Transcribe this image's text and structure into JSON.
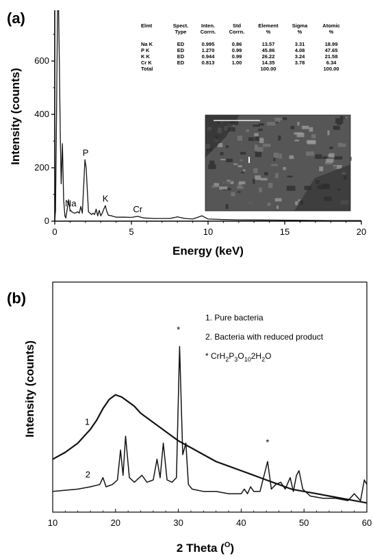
{
  "panels": {
    "a_label": "(a)",
    "b_label": "(b)"
  },
  "chart_data": [
    {
      "type": "line",
      "panel": "(a)",
      "title": "",
      "xlabel": "Energy (keV)",
      "ylabel": "Intensity (counts)",
      "xlim": [
        0,
        20
      ],
      "ylim": [
        0,
        790
      ],
      "x_ticks": [
        "0",
        "5",
        "10",
        "15",
        "20"
      ],
      "y_ticks": [
        "0",
        "200",
        "400",
        "600"
      ],
      "x_tick_values": [
        0,
        5,
        10,
        15,
        20
      ],
      "y_tick_values": [
        0,
        200,
        400,
        600
      ],
      "series": [
        {
          "x": [
            0.0,
            0.05,
            0.12,
            0.18,
            0.25,
            0.3,
            0.36,
            0.42,
            0.5,
            0.58,
            0.66,
            0.72,
            0.8,
            0.9,
            1.0,
            1.04,
            1.1,
            1.2,
            1.3,
            1.4,
            1.5,
            1.6,
            1.7,
            1.8,
            1.9,
            1.97,
            2.05,
            2.13,
            2.2,
            2.3,
            2.4,
            2.5,
            2.6,
            2.7,
            2.8,
            2.9,
            3.0,
            3.1,
            3.2,
            3.3,
            3.4,
            3.5,
            3.7,
            4.0,
            4.5,
            5.0,
            5.4,
            5.8,
            6.5,
            7.5,
            8.0,
            8.5,
            9.0,
            9.6,
            10.0,
            11.0,
            12.0,
            14.0,
            16.0,
            18.0,
            20.0
          ],
          "values": [
            0,
            40,
            420,
            790,
            790,
            600,
            320,
            140,
            290,
            80,
            20,
            12,
            40,
            80,
            38,
            40,
            36,
            32,
            30,
            32,
            35,
            30,
            55,
            30,
            150,
            230,
            200,
            110,
            35,
            30,
            25,
            30,
            25,
            45,
            20,
            40,
            20,
            30,
            45,
            58,
            35,
            22,
            20,
            15,
            15,
            14,
            18,
            12,
            10,
            10,
            16,
            10,
            8,
            20,
            8,
            6,
            5,
            4,
            3,
            2,
            2
          ]
        }
      ],
      "peak_labels": [
        {
          "text": "Na",
          "x": 1.04,
          "y": 40
        },
        {
          "text": "P",
          "x": 2.01,
          "y": 230
        },
        {
          "text": "K",
          "x": 3.31,
          "y": 58
        },
        {
          "text": "Cr",
          "x": 5.41,
          "y": 18
        }
      ],
      "table": {
        "headers": [
          [
            "Elmt",
            ""
          ],
          [
            "Spect.",
            "Type"
          ],
          [
            "Inten.",
            "Corrn."
          ],
          [
            "Std",
            "Corrn."
          ],
          [
            "Element",
            "%"
          ],
          [
            "Sigma",
            "%"
          ],
          [
            "Atomic",
            "%"
          ]
        ],
        "rows": [
          [
            "Na K",
            "ED",
            "0.995",
            "0.86",
            "13.57",
            "3.31",
            "18.99"
          ],
          [
            "P K",
            "ED",
            "1.270",
            "0.99",
            "45.86",
            "4.08",
            "47.65"
          ],
          [
            "K K",
            "ED",
            "0.944",
            "0.99",
            "26.22",
            "3.24",
            "21.58"
          ],
          [
            "Cr K",
            "ED",
            "0.813",
            "1.00",
            "14.35",
            "3.78",
            "6.34"
          ],
          [
            "Total",
            "",
            "",
            "",
            "100.00",
            "",
            "100.00"
          ]
        ]
      },
      "inset": {
        "marker_label": "I",
        "colors": [
          "#2e2e2e",
          "#565656",
          "#777777",
          "#9a9a9a"
        ]
      }
    },
    {
      "type": "line",
      "panel": "(b)",
      "title": "",
      "xlabel": "2 Theta (O)",
      "xlabel_main": "2 Theta (",
      "xlabel_sup": "O",
      "xlabel_end": ")",
      "ylabel": "Intensity (counts)",
      "xlim": [
        10,
        60
      ],
      "ylim": [
        0,
        100
      ],
      "y_ticks_visible": false,
      "x_ticks": [
        "10",
        "20",
        "30",
        "40",
        "50",
        "60"
      ],
      "x_tick_values": [
        10,
        20,
        30,
        40,
        50,
        60
      ],
      "legend": {
        "line1": "1. Pure bacteria",
        "line2": "2. Bacteria with reduced product",
        "line3_prefix": "* ",
        "formula": [
          {
            "t": "CrH",
            "s": "n"
          },
          {
            "t": "2",
            "s": "sub"
          },
          {
            "t": "P",
            "s": "n"
          },
          {
            "t": "3",
            "s": "sub"
          },
          {
            "t": "O",
            "s": "n"
          },
          {
            "t": "10",
            "s": "sub"
          },
          {
            "t": "2H",
            "s": "n"
          },
          {
            "t": "2",
            "s": "sub"
          },
          {
            "t": "O",
            "s": "n"
          }
        ]
      },
      "series": [
        {
          "name": "1",
          "x": [
            10,
            12,
            14,
            16,
            17,
            18,
            19,
            20,
            21,
            22,
            23,
            24,
            26,
            28,
            30,
            32,
            34,
            36,
            38,
            40,
            42,
            44,
            46,
            48,
            50,
            52,
            54,
            56,
            58,
            60
          ],
          "values": [
            23,
            26,
            30,
            36,
            40,
            45,
            49,
            51,
            50,
            48,
            46,
            43,
            39,
            35,
            31,
            28,
            25,
            22,
            20,
            18,
            16,
            14,
            12,
            10,
            9,
            8,
            7,
            6,
            5,
            4
          ]
        },
        {
          "name": "2",
          "x": [
            10,
            14,
            16,
            17.5,
            18,
            18.5,
            19.5,
            20.3,
            20.8,
            21.2,
            21.6,
            22.2,
            23,
            24.2,
            25,
            26,
            26.6,
            27.1,
            27.6,
            28.2,
            29,
            29.7,
            30.2,
            30.7,
            31.2,
            31.6,
            32.2,
            34,
            36,
            38,
            40,
            40.5,
            41,
            41.5,
            42,
            43,
            44.2,
            44.8,
            45.5,
            46.3,
            47,
            47.8,
            48.3,
            48.8,
            49.2,
            49.8,
            51,
            53,
            55,
            57,
            58,
            59,
            59.6,
            60
          ],
          "values": [
            9,
            10,
            11,
            12,
            15,
            11,
            12,
            14,
            27,
            16,
            33,
            15,
            13,
            16,
            13,
            14,
            23,
            15,
            30,
            14,
            13,
            15,
            72,
            25,
            30,
            12,
            10,
            9,
            9,
            8,
            8,
            10,
            8,
            11,
            9,
            9,
            22,
            10,
            12,
            13,
            10,
            15,
            9,
            16,
            18,
            10,
            7,
            6,
            6,
            5,
            8,
            5,
            14,
            12
          ]
        }
      ],
      "series_labels": [
        {
          "text": "1",
          "x": 15.5,
          "y": 38
        },
        {
          "text": "2",
          "x": 15.6,
          "y": 15
        }
      ],
      "star_marks": [
        {
          "text": "*",
          "x": 30,
          "y": 78
        },
        {
          "text": "*",
          "x": 44.2,
          "y": 29
        }
      ]
    }
  ]
}
